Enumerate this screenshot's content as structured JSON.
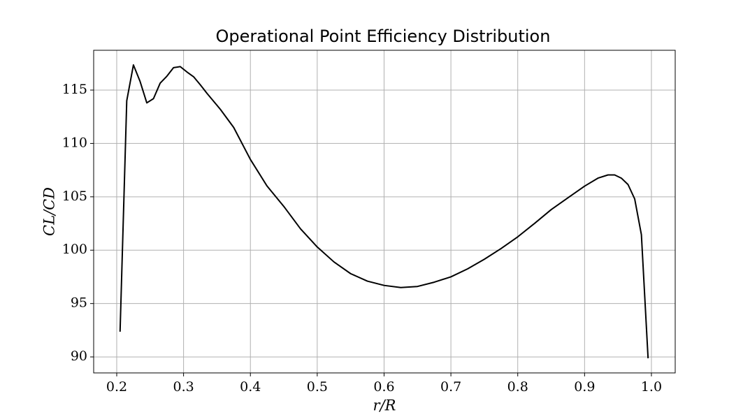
{
  "chart_data": {
    "type": "line",
    "title": "Operational Point Efficiency Distribution",
    "xlabel": "r/R",
    "ylabel": "CL/CD",
    "x": [
      0.205,
      0.215,
      0.225,
      0.235,
      0.245,
      0.255,
      0.265,
      0.275,
      0.285,
      0.295,
      0.305,
      0.315,
      0.325,
      0.335,
      0.355,
      0.375,
      0.4,
      0.425,
      0.45,
      0.475,
      0.5,
      0.525,
      0.55,
      0.575,
      0.6,
      0.625,
      0.65,
      0.675,
      0.7,
      0.725,
      0.75,
      0.775,
      0.8,
      0.825,
      0.85,
      0.875,
      0.9,
      0.92,
      0.935,
      0.945,
      0.955,
      0.965,
      0.975,
      0.985,
      0.995
    ],
    "series": [
      {
        "color": "#000000",
        "values": [
          92.36,
          114.0,
          117.36,
          115.8,
          113.8,
          114.2,
          115.65,
          116.3,
          117.1,
          117.2,
          116.7,
          116.25,
          115.5,
          114.7,
          113.2,
          111.5,
          108.5,
          106.0,
          104.1,
          102.0,
          100.3,
          98.9,
          97.8,
          97.1,
          96.7,
          96.5,
          96.6,
          97.0,
          97.5,
          98.25,
          99.15,
          100.15,
          101.25,
          102.5,
          103.8,
          104.9,
          106.0,
          106.75,
          107.05,
          107.05,
          106.75,
          106.15,
          104.8,
          101.45,
          89.87
        ]
      }
    ],
    "xlim": [
      0.1655,
      1.0356
    ],
    "xticks": [
      0.2,
      0.3,
      0.4,
      0.5,
      0.6,
      0.7,
      0.8,
      0.9,
      {
        "value": 1,
        "label": "1.0"
      }
    ],
    "ylim": [
      88.5,
      118.73
    ],
    "yticks": [
      90,
      95,
      100,
      105,
      110,
      115
    ],
    "grid": true
  }
}
